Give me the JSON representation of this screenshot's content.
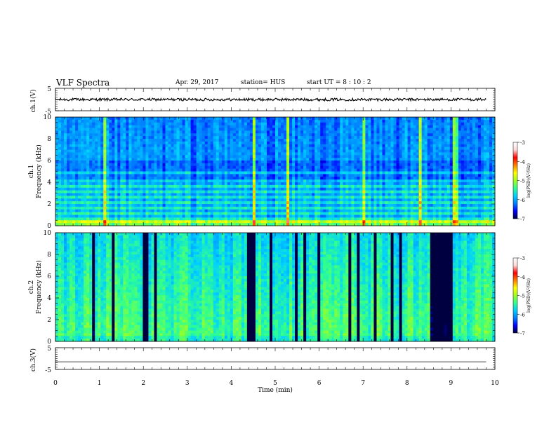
{
  "header": {
    "title": "VLF Spectra",
    "date": "Apr. 29, 2017",
    "station": "station= HUS",
    "start": "start  UT =   8  : 10 : 2"
  },
  "colors": {
    "spectrum": [
      "#000040",
      "#0000ff",
      "#0080ff",
      "#00d0ff",
      "#30ff90",
      "#a0ff20",
      "#ffff00",
      "#ff8000",
      "#ff0000",
      "#ffd8d8",
      "#ffffff"
    ]
  },
  "chart_data": [
    {
      "name_id": "ch1-waveform",
      "type": "line",
      "ylabel": "ch.1(V)",
      "ylim": [
        -5,
        5
      ],
      "yticks": [
        -5,
        5
      ],
      "xlim": [
        0,
        10
      ],
      "level": 0,
      "noise_amplitude": 0.6,
      "grid": false
    },
    {
      "name_id": "ch1-spectrogram",
      "type": "heatmap",
      "ylabel_top": "ch.1",
      "ylabel": "Frequency (kHz)",
      "ylim": [
        0,
        10
      ],
      "yticks": [
        0,
        2,
        4,
        6,
        8,
        10
      ],
      "xlim": [
        0,
        10
      ],
      "colorbar": {
        "label": "log(PSD)(V²/Hz)",
        "ticks": [
          -3,
          -4,
          -5,
          -6,
          -7
        ],
        "range": [
          -7,
          -3
        ]
      },
      "horizontal_bands_khz": [
        0.3,
        0.6,
        1.1,
        1.6,
        2.1,
        2.6,
        3.1,
        3.6,
        4.2,
        4.8
      ],
      "bright_bursts_min": [
        1.1,
        4.5,
        5.3,
        7.0,
        8.3,
        9.1
      ]
    },
    {
      "name_id": "ch2-spectrogram",
      "type": "heatmap",
      "ylabel_top": "ch.2",
      "ylabel": "Frequency (kHz)",
      "ylim": [
        0,
        10
      ],
      "yticks": [
        0,
        2,
        4,
        6,
        8,
        10
      ],
      "xlim": [
        0,
        10
      ],
      "colorbar": {
        "label": "log(PSD)(V²/Hz)",
        "ticks": [
          -3,
          -4,
          -5,
          -6,
          -7
        ],
        "range": [
          -7,
          -3
        ]
      },
      "dark_intervals_min": [
        [
          4.35,
          4.55
        ],
        [
          6.65,
          6.75
        ],
        [
          8.55,
          9.05
        ]
      ]
    },
    {
      "name_id": "ch3-waveform",
      "type": "line",
      "ylabel": "ch.3(V)",
      "ylim": [
        -5,
        5
      ],
      "yticks": [
        -5,
        5
      ],
      "xlim": [
        0,
        10
      ],
      "level": -1.5,
      "noise_amplitude": 0,
      "xlabel": "Time (min)",
      "xticks": [
        0,
        1,
        2,
        3,
        4,
        5,
        6,
        7,
        8,
        9,
        10
      ]
    }
  ]
}
